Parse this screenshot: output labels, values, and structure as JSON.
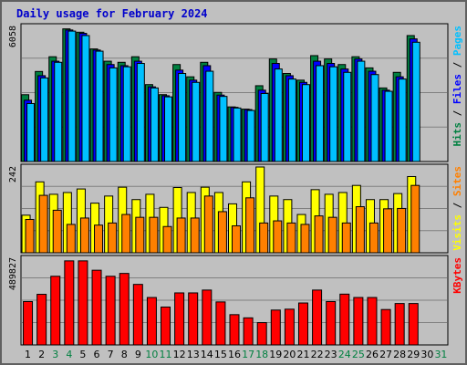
{
  "chart_data": {
    "type": "bar",
    "title": "Daily usage for February 2024",
    "days": [
      "1",
      "2",
      "3",
      "4",
      "5",
      "6",
      "7",
      "8",
      "9",
      "10",
      "11",
      "12",
      "13",
      "14",
      "15",
      "16",
      "17",
      "18",
      "19",
      "20",
      "21",
      "22",
      "23",
      "24",
      "25",
      "26",
      "27",
      "28",
      "29",
      "30",
      "31"
    ],
    "weekend_days": [
      "3",
      "4",
      "10",
      "11",
      "17",
      "18",
      "24",
      "25",
      "31"
    ],
    "panels": [
      {
        "name": "hits-files-pages",
        "max_label": "6058",
        "ymax": 6058,
        "series": [
          {
            "name": "Hits",
            "color": "#008040",
            "values": [
              2997,
              4039,
              4700,
              5950,
              5800,
              5050,
              4500,
              4450,
              4700,
              3450,
              3000,
              4350,
              3800,
              4450,
              3100,
              2450,
              2350,
              3400,
              4600,
              3950,
              3650,
              4750,
              4600,
              4350,
              4700,
              4200,
              3300,
              4000,
              5650,
              null,
              null
            ]
          },
          {
            "name": "Files",
            "color": "#0000ff",
            "values": [
              2750,
              3850,
              4500,
              5900,
              5750,
              5000,
              4350,
              4300,
              4500,
              3350,
              2950,
              4100,
              3650,
              4300,
              2980,
              2430,
              2330,
              3200,
              4400,
              3850,
              3550,
              4500,
              4400,
              4150,
              4600,
              4050,
              3200,
              3800,
              5500,
              null,
              null
            ]
          },
          {
            "name": "Pages",
            "color": "#00c0ff",
            "values": [
              2600,
              3750,
              4450,
              5850,
              5650,
              4950,
              4200,
              4250,
              4400,
              3300,
              2900,
              3950,
              3550,
              4050,
              2920,
              2400,
              2290,
              3050,
              4150,
              3700,
              3450,
              4300,
              4250,
              4000,
              4500,
              3900,
              3150,
              3700,
              5350,
              null,
              null
            ]
          }
        ],
        "side_label_parts": [
          {
            "text": "Hits",
            "color": "#008040"
          },
          {
            "text": " / ",
            "color": "#000000"
          },
          {
            "text": "Files",
            "color": "#0000ff"
          },
          {
            "text": " / ",
            "color": "#000000"
          },
          {
            "text": "Pages",
            "color": "#00c0ff"
          }
        ]
      },
      {
        "name": "visits-sites",
        "max_label": "242",
        "ymax": 242,
        "series": [
          {
            "name": "Visits",
            "color": "#ffff00",
            "values": [
              106,
              200,
              165,
              170,
              180,
              140,
              160,
              185,
              150,
              165,
              128,
              184,
              170,
              185,
              170,
              138,
              200,
              242,
              160,
              150,
              108,
              178,
              165,
              170,
              190,
              150,
              150,
              167,
              215,
              null,
              null
            ]
          },
          {
            "name": "Sites",
            "color": "#ff8000",
            "values": [
              94,
              162,
              120,
              80,
              98,
              78,
              84,
              108,
              100,
              100,
              74,
              98,
              98,
              160,
              116,
              76,
              155,
              84,
              90,
              84,
              80,
              104,
              100,
              84,
              130,
              84,
              124,
              125,
              190,
              null,
              null
            ]
          }
        ],
        "side_label_parts": [
          {
            "text": "Visits",
            "color": "#ffff00"
          },
          {
            "text": " / ",
            "color": "#000000"
          },
          {
            "text": "Sites",
            "color": "#ff8000"
          }
        ]
      },
      {
        "name": "kbytes",
        "max_label": "489827",
        "ymax": 489827,
        "series": [
          {
            "name": "KBytes",
            "color": "#ff0000",
            "values": [
              245000,
              286000,
              388000,
              475000,
              475000,
              422000,
              388000,
              404000,
              342000,
              268000,
              214000,
              294000,
              294000,
              310000,
              243000,
              171000,
              153000,
              126000,
              197000,
              202000,
              237000,
              310000,
              245000,
              287000,
              268000,
              268000,
              200000,
              234000,
              234000,
              null,
              null
            ]
          }
        ],
        "side_label_parts": [
          {
            "text": "KBytes",
            "color": "#ff0000"
          }
        ]
      }
    ]
  }
}
